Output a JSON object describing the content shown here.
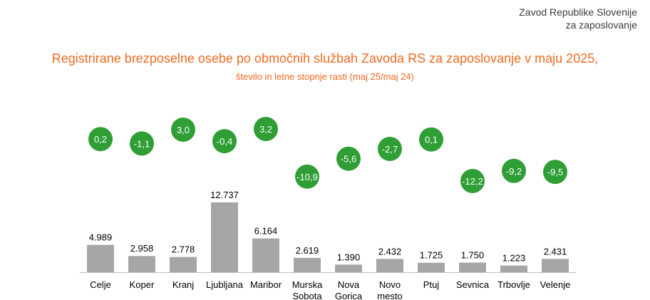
{
  "header": {
    "org_line1": "Zavod Republike Slovenije",
    "org_line2": "za zaposlovanje"
  },
  "chart_data": {
    "type": "bar",
    "title": "Registrirane brezposelne osebe po območnih službah Zavoda RS za zaposlovanje v maju 2025,",
    "subtitle": "število in letne stopnje rasti (maj 25/maj 24)",
    "categories": [
      [
        "Celje"
      ],
      [
        "Koper"
      ],
      [
        "Kranj"
      ],
      [
        "Ljubljana"
      ],
      [
        "Maribor"
      ],
      [
        "Murska",
        "Sobota"
      ],
      [
        "Nova",
        "Gorica"
      ],
      [
        "Novo",
        "mesto"
      ],
      [
        "Ptuj"
      ],
      [
        "Sevnica"
      ],
      [
        "Trbovlje"
      ],
      [
        "Velenje"
      ]
    ],
    "values": [
      4989,
      2958,
      2778,
      12737,
      6164,
      2619,
      1390,
      2432,
      1725,
      1750,
      1223,
      2431
    ],
    "value_labels": [
      "4.989",
      "2.958",
      "2.778",
      "12.737",
      "6.164",
      "2.619",
      "1.390",
      "2.432",
      "1.725",
      "1.750",
      "1.223",
      "2.431"
    ],
    "growth_rates": [
      0.2,
      -1.1,
      3.0,
      -0.4,
      3.2,
      -10.9,
      -5.6,
      -2.7,
      0.1,
      -12.2,
      -9.2,
      -9.5
    ],
    "growth_labels": [
      "0,2",
      "-1,1",
      "3,0",
      "-0,4",
      "3,2",
      "-10,9",
      "-5,6",
      "-2,7",
      "0,1",
      "-12,2",
      "-9,2",
      "-9,5"
    ],
    "colors": {
      "bar": "#a6a6a6",
      "circle": "#2e9e35",
      "title": "#f06a22"
    }
  }
}
